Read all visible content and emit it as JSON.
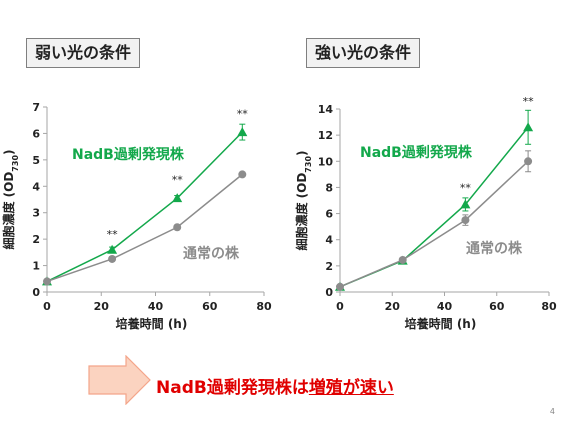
{
  "panels": {
    "left": {
      "label": "弱い光の条件"
    },
    "right": {
      "label": "強い光の条件"
    }
  },
  "conclusion": {
    "prefix": "NadB過剰発現株は",
    "highlight": "増殖が速い"
  },
  "page_number": "4",
  "colors": {
    "nadb": "#13a84b",
    "control": "#8c8c8c",
    "accent": "#e00000",
    "arrow": "#fbd3c0"
  },
  "chart_data": [
    {
      "type": "line",
      "ylabel_main": "細胞濃度 (OD",
      "ylabel_sub": "730",
      "ylabel_end": ")",
      "xlabel": "培養時間 (h)",
      "xlim": [
        0,
        80
      ],
      "ylim": [
        0,
        7
      ],
      "xticks": [
        0,
        20,
        40,
        60,
        80
      ],
      "yticks": [
        0,
        1,
        2,
        3,
        4,
        5,
        6,
        7
      ],
      "series": [
        {
          "name": "NadB過剰発現株",
          "marker": "triangle",
          "x": [
            0,
            24,
            48,
            72
          ],
          "y": [
            0.4,
            1.6,
            3.55,
            6.05
          ],
          "err": [
            0.05,
            0.1,
            0.1,
            0.3
          ]
        },
        {
          "name": "通常の株",
          "marker": "circle",
          "x": [
            0,
            24,
            48,
            72
          ],
          "y": [
            0.4,
            1.25,
            2.45,
            4.45
          ],
          "err": [
            0.05,
            0.05,
            0.05,
            0.05
          ]
        }
      ],
      "annotations": [
        {
          "text": "**",
          "x": 24,
          "y": 2.05
        },
        {
          "text": "**",
          "x": 48,
          "y": 4.1
        },
        {
          "text": "**",
          "x": 72,
          "y": 6.6
        }
      ]
    },
    {
      "type": "line",
      "ylabel_main": "細胞濃度 (OD",
      "ylabel_sub": "730",
      "ylabel_end": ")",
      "xlabel": "培養時間 (h)",
      "xlim": [
        0,
        80
      ],
      "ylim": [
        0,
        14
      ],
      "xticks": [
        0,
        20,
        40,
        60,
        80
      ],
      "yticks": [
        0,
        2,
        4,
        6,
        8,
        10,
        12,
        14
      ],
      "series": [
        {
          "name": "NadB過剰発現株",
          "marker": "triangle",
          "x": [
            0,
            24,
            48,
            72
          ],
          "y": [
            0.4,
            2.4,
            6.7,
            12.6
          ],
          "err": [
            0.05,
            0.1,
            0.5,
            1.3
          ]
        },
        {
          "name": "通常の株",
          "marker": "circle",
          "x": [
            0,
            24,
            48,
            72
          ],
          "y": [
            0.4,
            2.45,
            5.5,
            10.0
          ],
          "err": [
            0.05,
            0.1,
            0.4,
            0.8
          ]
        }
      ],
      "annotations": [
        {
          "text": "**",
          "x": 48,
          "y": 7.7
        },
        {
          "text": "**",
          "x": 72,
          "y": 14.3
        }
      ]
    }
  ]
}
